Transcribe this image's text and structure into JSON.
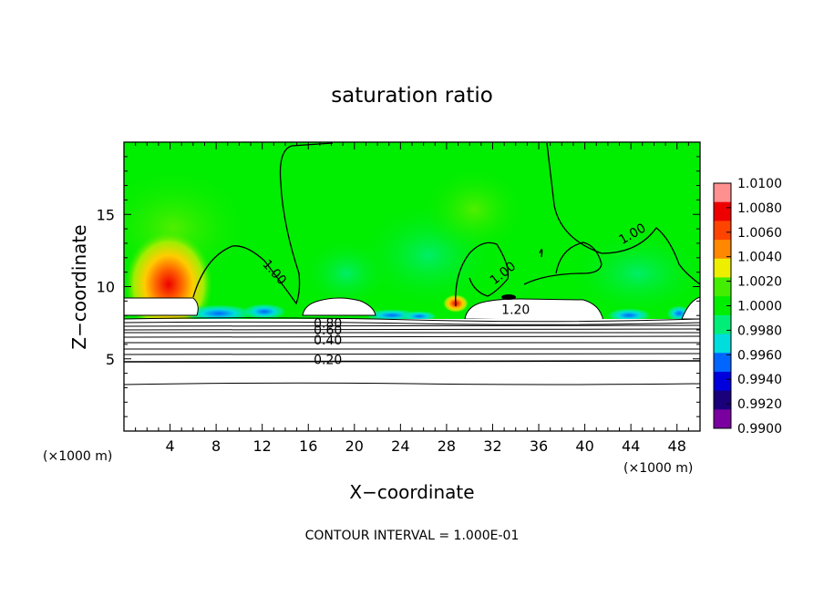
{
  "chart_data": {
    "type": "heatmap",
    "title": "saturation ratio",
    "xlabel": "X−coordinate",
    "ylabel": "Z−coordinate",
    "x_unit_left": "(×1000 m)",
    "x_unit_right": "(×1000 m)",
    "xlim": [
      0,
      50
    ],
    "ylim": [
      0,
      20
    ],
    "xticks": [
      4,
      8,
      12,
      16,
      20,
      24,
      28,
      32,
      36,
      40,
      44,
      48
    ],
    "xtick_labels": [
      "4",
      "8",
      "12",
      "16",
      "20",
      "24",
      "28",
      "32",
      "36",
      "40",
      "44",
      "48"
    ],
    "yticks": [
      5,
      10,
      15
    ],
    "ytick_labels": [
      "5",
      "10",
      "15"
    ],
    "footer": "CONTOUR INTERVAL = 1.000E-01",
    "colorbar": {
      "labels": [
        "1.0100",
        "1.0080",
        "1.0060",
        "1.0040",
        "1.0020",
        "1.0000",
        "0.9980",
        "0.9960",
        "0.9940",
        "0.9920",
        "0.9900"
      ],
      "colors": [
        "#ff9090",
        "#ee0000",
        "#ff4400",
        "#ff8800",
        "#eeee00",
        "#44ee00",
        "#00ee00",
        "#00ee77",
        "#00dddd",
        "#0066ff",
        "#0000dd",
        "#1a007a",
        "#7a00a0"
      ]
    },
    "contour_labels": [
      {
        "text": "1.00",
        "x": 12.8,
        "y": 10.8,
        "angle": 48
      },
      {
        "text": "1.00",
        "x": 33.1,
        "y": 10.7,
        "angle": -38
      },
      {
        "text": "1.00",
        "x": 44.3,
        "y": 13.4,
        "angle": -30
      },
      {
        "text": "1.20",
        "x": 34.0,
        "y": 8.1,
        "angle": 0
      },
      {
        "text": "0.80",
        "x": 17.7,
        "y": 7.15,
        "angle": 0
      },
      {
        "text": "0.60",
        "x": 17.7,
        "y": 6.7,
        "angle": 0
      },
      {
        "text": "0.40",
        "x": 17.7,
        "y": 6.0,
        "angle": 0
      },
      {
        "text": "0.20",
        "x": 17.7,
        "y": 4.65,
        "angle": 0
      }
    ]
  }
}
